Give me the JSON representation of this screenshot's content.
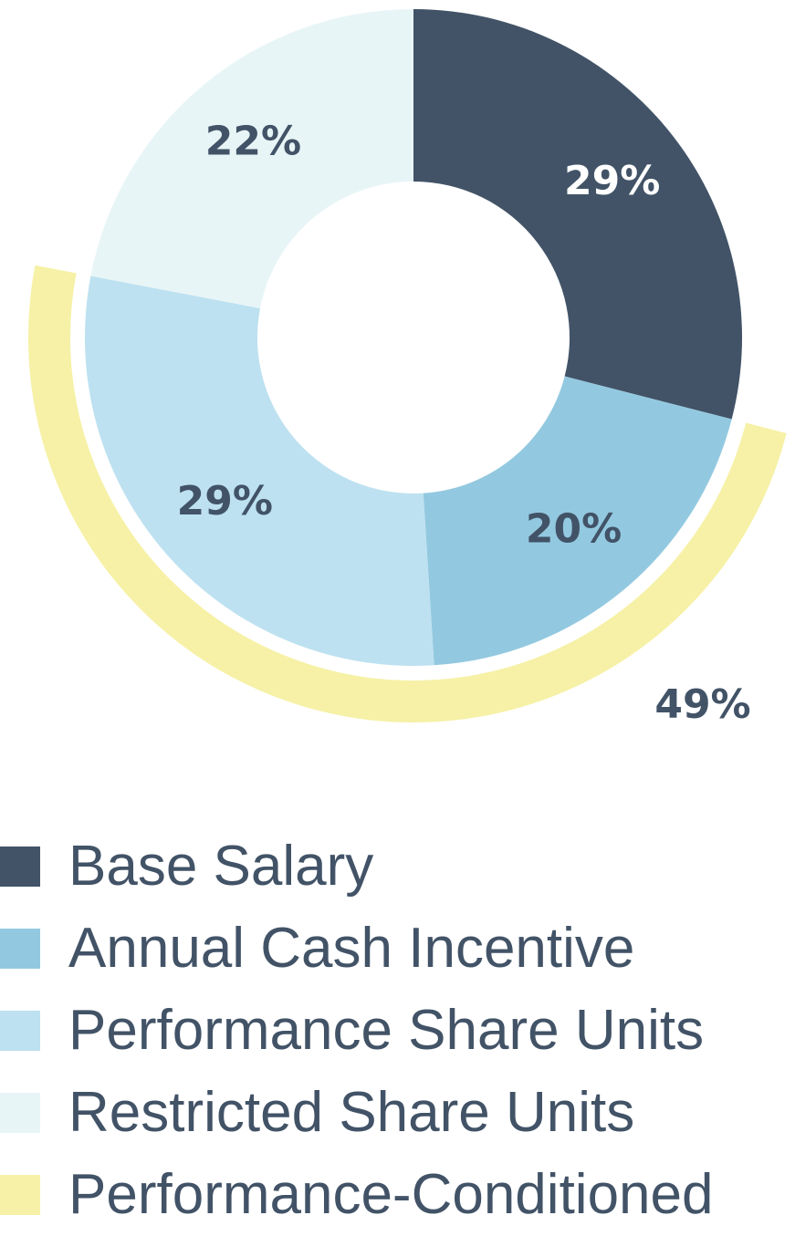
{
  "chart_data": {
    "type": "pie",
    "title": "",
    "series": [
      {
        "name": "Base Salary",
        "value": 29,
        "label": "29%",
        "color": "#425367",
        "label_color": "#ffffff"
      },
      {
        "name": "Annual Cash Incentive",
        "value": 20,
        "label": "20%",
        "color": "#93c9e0",
        "label_color": "#425367"
      },
      {
        "name": "Performance Share Units",
        "value": 29,
        "label": "29%",
        "color": "#bde1f0",
        "label_color": "#425367"
      },
      {
        "name": "Restricted Share Units",
        "value": 22,
        "label": "22%",
        "color": "#e8f5f7",
        "label_color": "#425367"
      }
    ],
    "overlay": {
      "name": "Performance-Conditioned",
      "value": 49,
      "label": "49%",
      "color": "#f6f1a6",
      "label_color": "#425367"
    },
    "legend": {
      "placement": "bottom-left",
      "items": [
        {
          "label": "Base Salary",
          "color": "#425367"
        },
        {
          "label": "Annual Cash Incentive",
          "color": "#93c9e0"
        },
        {
          "label": "Performance Share Units",
          "color": "#bde1f0"
        },
        {
          "label": "Restricted Share Units",
          "color": "#e8f5f7"
        },
        {
          "label": "Performance-Conditioned",
          "color": "#f6f1a6"
        }
      ]
    }
  }
}
